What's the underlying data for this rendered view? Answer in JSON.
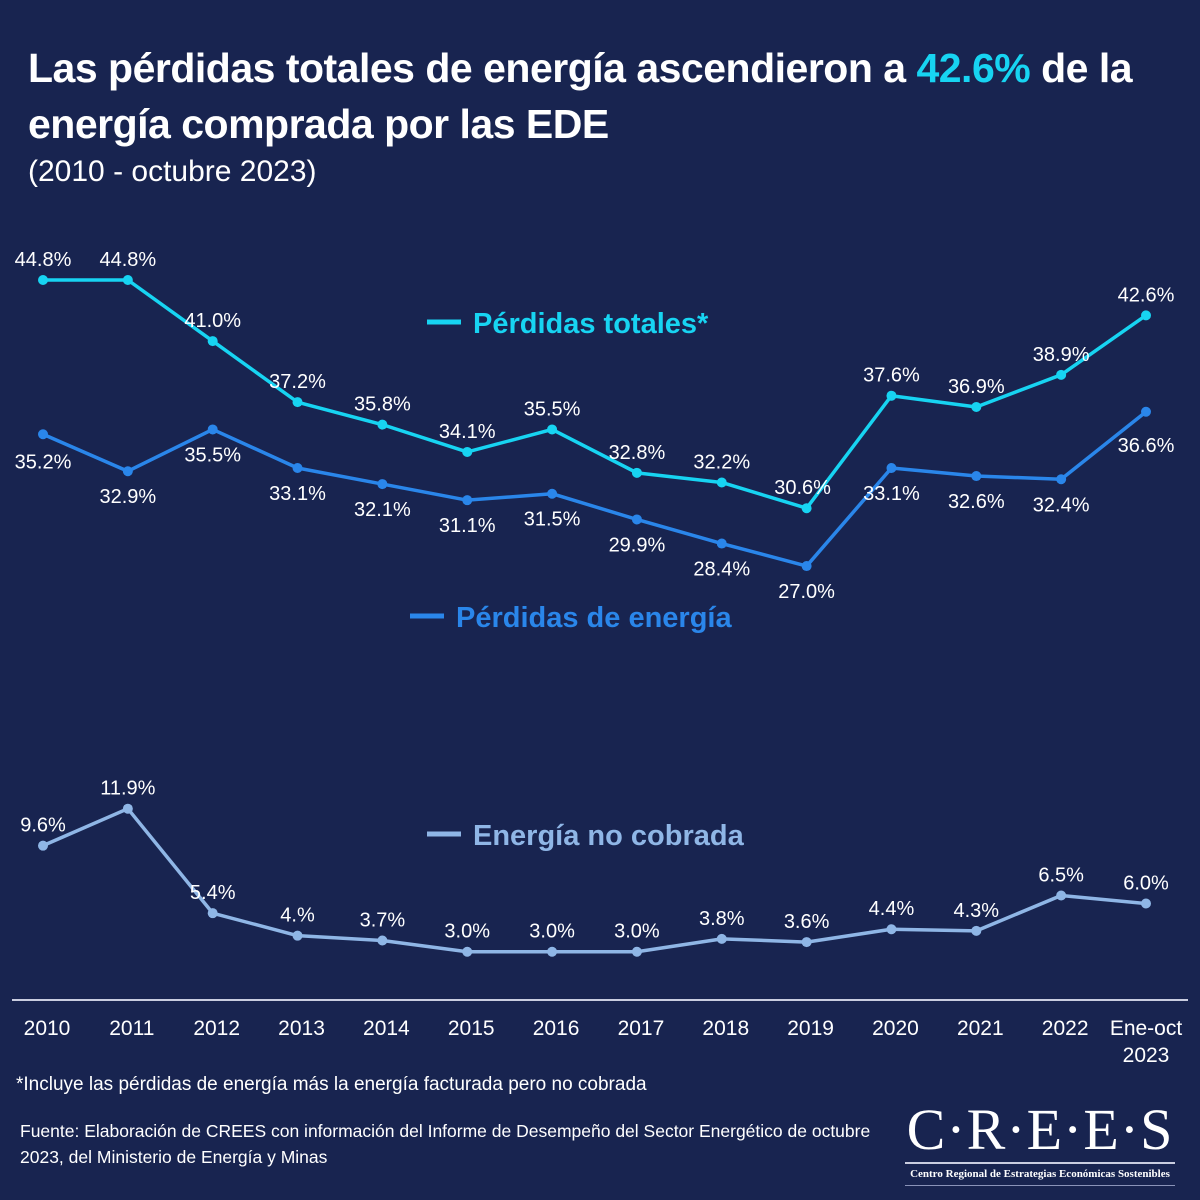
{
  "header": {
    "title_pre": "Las pérdidas totales de energía ascendieron a ",
    "title_highlight": "42.6%",
    "title_post": " de la energía comprada por las EDE",
    "subtitle": "(2010 - octubre 2023)"
  },
  "chart_data": {
    "type": "line",
    "title": "Las pérdidas totales de energía ascendieron a 42.6% de la energía comprada por las EDE",
    "subtitle": "(2010 - octubre 2023)",
    "xlabel": "",
    "ylabel": "",
    "grid": false,
    "categories": [
      "2010",
      "2011",
      "2012",
      "2013",
      "2014",
      "2015",
      "2016",
      "2017",
      "2018",
      "2019",
      "2020",
      "2021",
      "2022",
      [
        "Ene-oct",
        "2023"
      ]
    ],
    "series": [
      {
        "name": "Pérdidas totales*",
        "color": "#17d4f2",
        "values": [
          44.8,
          44.8,
          41.0,
          37.2,
          35.8,
          34.1,
          35.5,
          32.8,
          32.2,
          30.6,
          37.6,
          36.9,
          38.9,
          42.6
        ],
        "labels": [
          "44.8%",
          "44.8%",
          "41.0%",
          "37.2%",
          "35.8%",
          "34.1%",
          "35.5%",
          "32.8%",
          "32.2%",
          "30.6%",
          "37.6%",
          "36.9%",
          "38.9%",
          "42.6%"
        ],
        "label_position": "above"
      },
      {
        "name": "Pérdidas de energía",
        "color": "#2a86ea",
        "values": [
          35.2,
          32.9,
          35.5,
          33.1,
          32.1,
          31.1,
          31.5,
          29.9,
          28.4,
          27.0,
          33.1,
          32.6,
          32.4,
          36.6
        ],
        "labels": [
          "35.2%",
          "32.9%",
          "35.5%",
          "33.1%",
          "32.1%",
          "31.1%",
          "31.5%",
          "29.9%",
          "28.4%",
          "27.0%",
          "33.1%",
          "32.6%",
          "32.4%",
          "36.6%"
        ],
        "label_position": "below"
      },
      {
        "name": "Energía no cobrada",
        "color": "#8fb6e6",
        "values": [
          9.6,
          11.9,
          5.4,
          4.0,
          3.7,
          3.0,
          3.0,
          3.0,
          3.8,
          3.6,
          4.4,
          4.3,
          6.5,
          6.0
        ],
        "labels": [
          "9.6%",
          "11.9%",
          "5.4%",
          "4.%",
          "3.7%",
          "3.0%",
          "3.0%",
          "3.0%",
          "3.8%",
          "3.6%",
          "4.4%",
          "4.3%",
          "6.5%",
          "6.0%"
        ],
        "label_position": "above"
      }
    ],
    "legend": [
      {
        "label": "Pérdidas totales*",
        "color": "#17d4f2",
        "placement": "center, near series"
      },
      {
        "label": "Pérdidas de energía",
        "color": "#2a86ea",
        "placement": "center, below series"
      },
      {
        "label": "Energía no cobrada",
        "color": "#8fb6e6",
        "placement": "center, above series"
      }
    ],
    "ylim": [
      0,
      50
    ],
    "y_axis_visible": false,
    "units": "%"
  },
  "footer": {
    "footnote": "*Incluye las pérdidas de energía más la energía facturada pero no cobrada",
    "source": "Fuente: Elaboración de CREES con información del Informe de Desempeño del Sector Energético de octubre 2023, del Ministerio de Energía y Minas",
    "logo_main": "C·R·E·E·S",
    "logo_sub": "Centro Regional de Estrategias Económicas Sostenibles"
  }
}
